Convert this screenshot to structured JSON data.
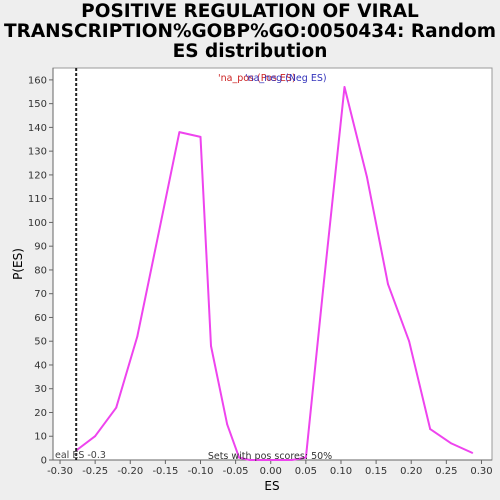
{
  "chart_data": {
    "type": "line",
    "title_lines": [
      "POSITIVE REGULATION OF VIRAL",
      "TRANSCRIPTION%GOBP%GO:0050434: Random",
      "ES distribution"
    ],
    "xlabel": "ES",
    "ylabel": "P(ES)",
    "xlim": [
      -0.31,
      0.315
    ],
    "ylim": [
      0,
      165
    ],
    "xticks": [
      -0.3,
      -0.25,
      -0.2,
      -0.15,
      -0.1,
      -0.05,
      0.0,
      0.05,
      0.1,
      0.15,
      0.2,
      0.25,
      0.3
    ],
    "xtick_labels": [
      "-0.30",
      "-0.25",
      "-0.20",
      "-0.15",
      "-0.10",
      "-0.05",
      "0.00",
      "0.05",
      "0.10",
      "0.15",
      "0.20",
      "0.25",
      "0.30"
    ],
    "yticks": [
      0,
      10,
      20,
      30,
      40,
      50,
      60,
      70,
      80,
      90,
      100,
      110,
      120,
      130,
      140,
      150,
      160
    ],
    "ytick_labels": [
      "0",
      "10",
      "20",
      "30",
      "40",
      "50",
      "60",
      "70",
      "80",
      "90",
      "100",
      "110",
      "120",
      "130",
      "140",
      "150",
      "160"
    ],
    "series": [
      {
        "name": "",
        "color": "#ee44ee",
        "x": [
          -0.277,
          -0.25,
          -0.22,
          -0.19,
          -0.16,
          -0.13,
          -0.1,
          -0.085,
          -0.062,
          -0.045,
          -0.03,
          0.0,
          0.03,
          0.05,
          0.075,
          0.105,
          0.137,
          0.167,
          0.197,
          0.227,
          0.257,
          0.287
        ],
        "y": [
          4,
          10,
          22,
          52,
          95,
          138,
          136,
          48,
          15,
          1,
          0,
          0,
          0,
          1,
          73,
          157,
          119,
          74,
          50,
          13,
          7,
          3
        ]
      }
    ],
    "real_es_value": -0.277,
    "real_es_label": "eal ES -0.3",
    "legend_overlap": {
      "text_a": "'na_pos (Pos ES)",
      "text_b": "'na_neg (Neg ES)",
      "color_a": "#cc2222",
      "color_b": "#3333bb"
    },
    "note": "Sets with pos scores: 50%"
  }
}
